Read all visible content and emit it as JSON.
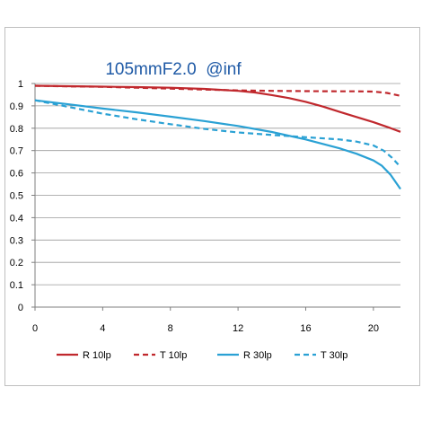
{
  "chart_data": {
    "type": "line",
    "title": "105mmF2.0  @inf",
    "xlabel": "",
    "ylabel": "",
    "xlim": [
      0,
      21.6
    ],
    "ylim": [
      0,
      1
    ],
    "x_ticks": [
      "0",
      "4",
      "8",
      "12",
      "16",
      "20"
    ],
    "y_ticks": [
      "0",
      "0.1",
      "0.2",
      "0.3",
      "0.4",
      "0.5",
      "0.6",
      "0.7",
      "0.8",
      "0.9",
      "1"
    ],
    "grid": true,
    "legend_position": "bottom",
    "series": [
      {
        "name": "R 10lp",
        "color": "#c0282d",
        "dash": "solid",
        "points": [
          [
            0,
            0.99
          ],
          [
            2,
            0.988
          ],
          [
            4,
            0.986
          ],
          [
            6,
            0.984
          ],
          [
            8,
            0.981
          ],
          [
            10,
            0.976
          ],
          [
            12,
            0.967
          ],
          [
            13,
            0.96
          ],
          [
            14,
            0.948
          ],
          [
            15,
            0.935
          ],
          [
            16,
            0.918
          ],
          [
            17,
            0.897
          ],
          [
            18,
            0.873
          ],
          [
            19,
            0.85
          ],
          [
            20,
            0.827
          ],
          [
            21,
            0.801
          ],
          [
            21.6,
            0.784
          ]
        ]
      },
      {
        "name": "T 10lp",
        "color": "#c0282d",
        "dash": "dashed",
        "points": [
          [
            0,
            0.99
          ],
          [
            2,
            0.987
          ],
          [
            4,
            0.985
          ],
          [
            6,
            0.981
          ],
          [
            8,
            0.977
          ],
          [
            10,
            0.973
          ],
          [
            12,
            0.969
          ],
          [
            14,
            0.967
          ],
          [
            16,
            0.966
          ],
          [
            18,
            0.965
          ],
          [
            19,
            0.965
          ],
          [
            20,
            0.964
          ],
          [
            20.8,
            0.958
          ],
          [
            21.6,
            0.945
          ]
        ]
      },
      {
        "name": "R 30lp",
        "color": "#2aa1d4",
        "dash": "solid",
        "points": [
          [
            0,
            0.925
          ],
          [
            2,
            0.907
          ],
          [
            4,
            0.888
          ],
          [
            6,
            0.871
          ],
          [
            8,
            0.852
          ],
          [
            10,
            0.832
          ],
          [
            12,
            0.81
          ],
          [
            14,
            0.783
          ],
          [
            16,
            0.75
          ],
          [
            18,
            0.71
          ],
          [
            19,
            0.686
          ],
          [
            20,
            0.656
          ],
          [
            20.5,
            0.632
          ],
          [
            21,
            0.593
          ],
          [
            21.6,
            0.528
          ]
        ]
      },
      {
        "name": "T 30lp",
        "color": "#2aa1d4",
        "dash": "dashed",
        "points": [
          [
            0,
            0.925
          ],
          [
            2,
            0.895
          ],
          [
            4,
            0.865
          ],
          [
            6,
            0.84
          ],
          [
            8,
            0.818
          ],
          [
            10,
            0.797
          ],
          [
            12,
            0.781
          ],
          [
            14,
            0.77
          ],
          [
            16,
            0.76
          ],
          [
            18,
            0.75
          ],
          [
            19,
            0.74
          ],
          [
            20,
            0.723
          ],
          [
            20.6,
            0.7
          ],
          [
            21.1,
            0.668
          ],
          [
            21.6,
            0.627
          ]
        ]
      }
    ]
  }
}
